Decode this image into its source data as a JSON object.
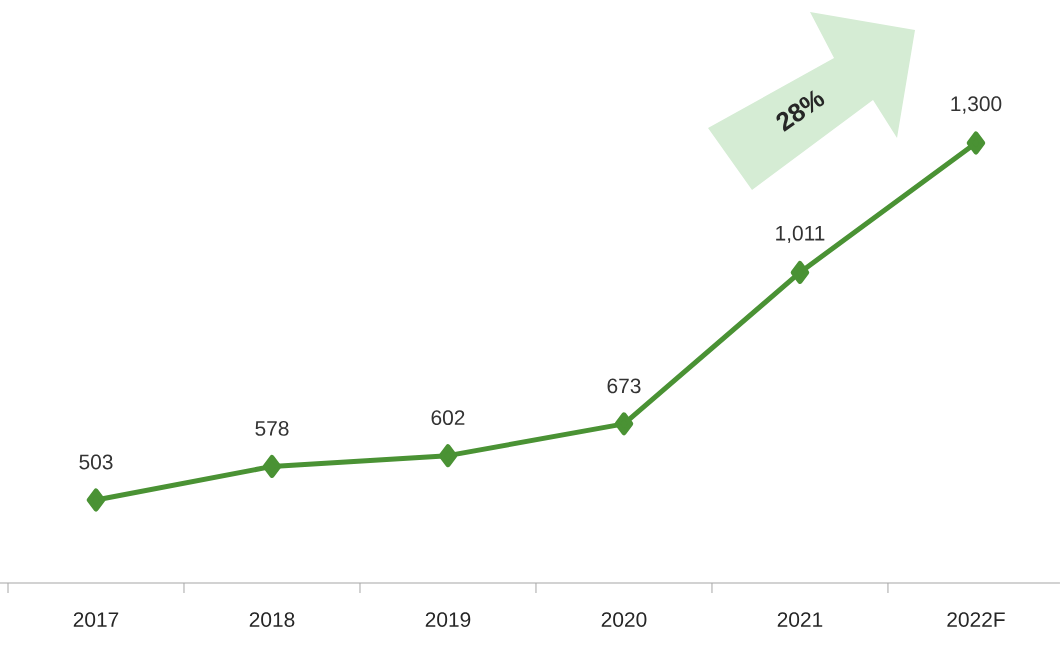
{
  "chart_data": {
    "type": "line",
    "categories": [
      "2017",
      "2018",
      "2019",
      "2020",
      "2021",
      "2022F"
    ],
    "series": [
      {
        "color": "#4a9234",
        "values": [
          503,
          578,
          602,
          673,
          1011,
          1300
        ],
        "value_labels": [
          "503",
          "578",
          "602",
          "673",
          "1,011",
          "1,300"
        ]
      }
    ],
    "marker": "diamond",
    "line_style": "solid",
    "annotations": [
      "28%"
    ]
  }
}
